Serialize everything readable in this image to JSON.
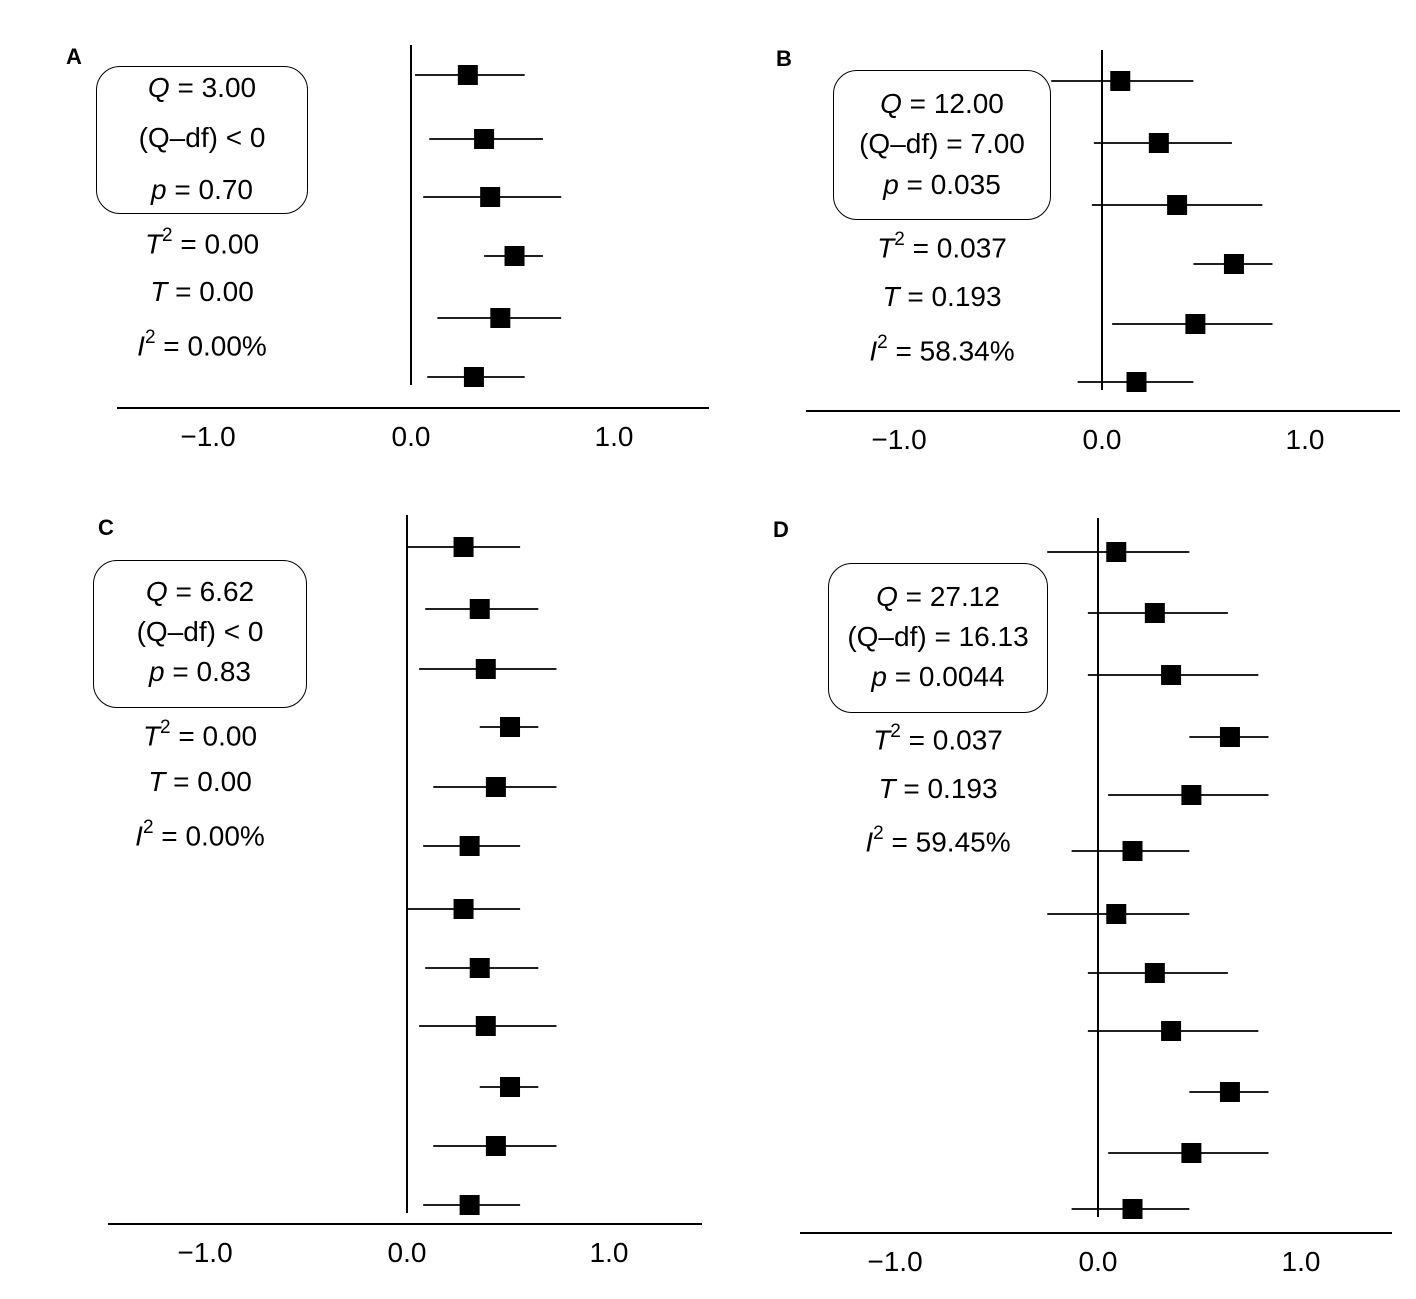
{
  "chart_data": [
    {
      "type": "forest",
      "panel": "A",
      "xlim": [
        -1.5,
        1.5
      ],
      "xticks": [
        "−1.0",
        "0.0",
        "1.0"
      ],
      "studies": [
        {
          "effect": 0.28,
          "lo": 0.02,
          "hi": 0.56
        },
        {
          "effect": 0.36,
          "lo": 0.09,
          "hi": 0.65
        },
        {
          "effect": 0.39,
          "lo": 0.06,
          "hi": 0.74
        },
        {
          "effect": 0.51,
          "lo": 0.36,
          "hi": 0.65
        },
        {
          "effect": 0.44,
          "lo": 0.13,
          "hi": 0.74
        },
        {
          "effect": 0.31,
          "lo": 0.08,
          "hi": 0.56
        }
      ],
      "stats": {
        "q": "3.00",
        "qdf": "< 0",
        "p": "0.70",
        "t2": "0.00",
        "t": "0.00",
        "i2": "0.00%"
      }
    },
    {
      "type": "forest",
      "panel": "B",
      "xlim": [
        -1.5,
        1.5
      ],
      "xticks": [
        "−1.0",
        "0.0",
        "1.0"
      ],
      "studies": [
        {
          "effect": 0.09,
          "lo": -0.25,
          "hi": 0.45
        },
        {
          "effect": 0.28,
          "lo": -0.04,
          "hi": 0.64
        },
        {
          "effect": 0.37,
          "lo": -0.05,
          "hi": 0.79
        },
        {
          "effect": 0.65,
          "lo": 0.45,
          "hi": 0.84
        },
        {
          "effect": 0.46,
          "lo": 0.05,
          "hi": 0.84
        },
        {
          "effect": 0.17,
          "lo": -0.12,
          "hi": 0.45
        }
      ],
      "stats": {
        "q": "12.00",
        "qdf": "= 7.00",
        "p": "0.035",
        "t2": "0.037",
        "t": "0.193",
        "i2": "58.34%"
      }
    },
    {
      "type": "forest",
      "panel": "C",
      "xlim": [
        -1.5,
        1.5
      ],
      "xticks": [
        "−1.0",
        "0.0",
        "1.0"
      ],
      "studies": [
        {
          "effect": 0.28,
          "lo": 0.0,
          "hi": 0.56
        },
        {
          "effect": 0.36,
          "lo": 0.09,
          "hi": 0.65
        },
        {
          "effect": 0.39,
          "lo": 0.06,
          "hi": 0.74
        },
        {
          "effect": 0.51,
          "lo": 0.36,
          "hi": 0.65
        },
        {
          "effect": 0.44,
          "lo": 0.13,
          "hi": 0.74
        },
        {
          "effect": 0.31,
          "lo": 0.08,
          "hi": 0.56
        },
        {
          "effect": 0.28,
          "lo": 0.0,
          "hi": 0.56
        },
        {
          "effect": 0.36,
          "lo": 0.09,
          "hi": 0.65
        },
        {
          "effect": 0.39,
          "lo": 0.06,
          "hi": 0.74
        },
        {
          "effect": 0.51,
          "lo": 0.36,
          "hi": 0.65
        },
        {
          "effect": 0.44,
          "lo": 0.13,
          "hi": 0.74
        },
        {
          "effect": 0.31,
          "lo": 0.08,
          "hi": 0.56
        }
      ],
      "stats": {
        "q": "6.62",
        "qdf": "< 0",
        "p": "0.83",
        "t2": "0.00",
        "t": "0.00",
        "i2": "0.00%"
      }
    },
    {
      "type": "forest",
      "panel": "D",
      "xlim": [
        -1.5,
        1.5
      ],
      "xticks": [
        "−1.0",
        "0.0",
        "1.0"
      ],
      "studies": [
        {
          "effect": 0.09,
          "lo": -0.25,
          "hi": 0.45
        },
        {
          "effect": 0.28,
          "lo": -0.05,
          "hi": 0.64
        },
        {
          "effect": 0.36,
          "lo": -0.05,
          "hi": 0.79
        },
        {
          "effect": 0.65,
          "lo": 0.45,
          "hi": 0.84
        },
        {
          "effect": 0.46,
          "lo": 0.05,
          "hi": 0.84
        },
        {
          "effect": 0.17,
          "lo": -0.13,
          "hi": 0.45
        },
        {
          "effect": 0.09,
          "lo": -0.25,
          "hi": 0.45
        },
        {
          "effect": 0.28,
          "lo": -0.05,
          "hi": 0.64
        },
        {
          "effect": 0.36,
          "lo": -0.05,
          "hi": 0.79
        },
        {
          "effect": 0.65,
          "lo": 0.45,
          "hi": 0.84
        },
        {
          "effect": 0.46,
          "lo": 0.05,
          "hi": 0.84
        },
        {
          "effect": 0.17,
          "lo": -0.13,
          "hi": 0.45
        }
      ],
      "stats": {
        "q": "27.12",
        "qdf": "= 16.13",
        "p": "0.0044",
        "t2": "0.037",
        "t": "0.193",
        "i2": "59.45%"
      }
    }
  ]
}
